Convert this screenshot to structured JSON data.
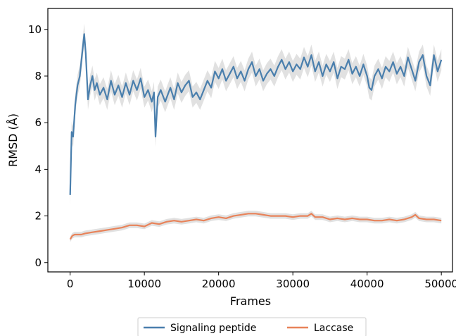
{
  "chart_data": {
    "type": "line",
    "xlabel": "Frames",
    "ylabel": "RMSD (Å)",
    "xlim": [
      -3000,
      51500
    ],
    "ylim": [
      -0.4,
      10.9
    ],
    "xticks": [
      0,
      10000,
      20000,
      30000,
      40000,
      50000
    ],
    "yticks": [
      0,
      2,
      4,
      6,
      8,
      10
    ],
    "grid": false,
    "legend_placement": "bottom-center, below plot",
    "series": [
      {
        "name": "Signaling peptide",
        "color": "#4a7fad",
        "band_color": "#dcdcdc",
        "x": [
          0,
          200,
          400,
          700,
          1000,
          1300,
          1600,
          1900,
          2100,
          2400,
          2700,
          3000,
          3300,
          3600,
          4000,
          4500,
          5000,
          5500,
          6000,
          6500,
          7000,
          7500,
          8000,
          8500,
          9000,
          9500,
          10000,
          10500,
          11000,
          11300,
          11500,
          11800,
          12200,
          12800,
          13500,
          14000,
          14500,
          15000,
          15500,
          16000,
          16500,
          17000,
          17500,
          18000,
          18500,
          19000,
          19500,
          20000,
          20500,
          21000,
          21500,
          22000,
          22500,
          23000,
          23500,
          24000,
          24500,
          25000,
          25500,
          26000,
          26500,
          27000,
          27500,
          28000,
          28500,
          29000,
          29500,
          30000,
          30500,
          31000,
          31500,
          32000,
          32500,
          33000,
          33500,
          34000,
          34500,
          35000,
          35500,
          36000,
          36500,
          37000,
          37500,
          38000,
          38500,
          39000,
          39500,
          40000,
          40300,
          40600,
          41000,
          41500,
          42000,
          42500,
          43000,
          43500,
          44000,
          44500,
          45000,
          45500,
          46000,
          46500,
          47000,
          47500,
          48000,
          48500,
          49000,
          49500,
          50000
        ],
        "values": [
          2.9,
          5.6,
          5.4,
          6.8,
          7.6,
          8.0,
          8.9,
          9.8,
          9.0,
          7.0,
          7.6,
          8.0,
          7.4,
          7.7,
          7.2,
          7.5,
          7.0,
          7.8,
          7.2,
          7.6,
          7.1,
          7.7,
          7.2,
          7.8,
          7.4,
          7.9,
          7.1,
          7.4,
          6.9,
          7.3,
          5.4,
          7.1,
          7.4,
          6.9,
          7.5,
          7.0,
          7.7,
          7.3,
          7.6,
          7.8,
          7.1,
          7.3,
          7.0,
          7.4,
          7.8,
          7.5,
          8.2,
          7.9,
          8.3,
          7.8,
          8.1,
          8.4,
          7.9,
          8.2,
          7.8,
          8.3,
          8.6,
          8.0,
          8.3,
          7.8,
          8.1,
          8.3,
          8.0,
          8.4,
          8.7,
          8.3,
          8.6,
          8.2,
          8.5,
          8.3,
          8.8,
          8.4,
          8.9,
          8.2,
          8.6,
          8.0,
          8.5,
          8.2,
          8.6,
          7.9,
          8.4,
          8.3,
          8.7,
          8.1,
          8.4,
          8.0,
          8.5,
          8.0,
          7.5,
          7.4,
          8.0,
          8.3,
          7.9,
          8.4,
          8.2,
          8.6,
          8.1,
          8.4,
          8.0,
          8.8,
          8.3,
          7.8,
          8.6,
          8.9,
          8.0,
          7.6,
          8.9,
          8.2,
          8.7
        ],
        "spread": 0.45
      },
      {
        "name": "Laccase",
        "color": "#e8835a",
        "band_color": "#dcdcdc",
        "x": [
          0,
          300,
          600,
          1000,
          1500,
          2000,
          3000,
          4000,
          5000,
          6000,
          7000,
          8000,
          9000,
          10000,
          11000,
          12000,
          13000,
          14000,
          15000,
          16000,
          17000,
          18000,
          19000,
          20000,
          21000,
          22000,
          23000,
          24000,
          25000,
          26000,
          27000,
          28000,
          29000,
          30000,
          31000,
          32000,
          32500,
          33000,
          34000,
          35000,
          36000,
          37000,
          38000,
          39000,
          40000,
          41000,
          42000,
          43000,
          44000,
          45000,
          46000,
          46500,
          47000,
          48000,
          49000,
          50000
        ],
        "values": [
          1.0,
          1.15,
          1.2,
          1.2,
          1.2,
          1.25,
          1.3,
          1.35,
          1.4,
          1.45,
          1.5,
          1.6,
          1.6,
          1.55,
          1.7,
          1.65,
          1.75,
          1.8,
          1.75,
          1.8,
          1.85,
          1.8,
          1.9,
          1.95,
          1.9,
          2.0,
          2.05,
          2.1,
          2.1,
          2.05,
          2.0,
          2.0,
          2.0,
          1.95,
          2.0,
          2.0,
          2.1,
          1.95,
          1.95,
          1.85,
          1.9,
          1.85,
          1.9,
          1.85,
          1.85,
          1.8,
          1.8,
          1.85,
          1.8,
          1.85,
          1.95,
          2.05,
          1.9,
          1.85,
          1.85,
          1.8
        ],
        "spread": 0.12
      }
    ]
  }
}
